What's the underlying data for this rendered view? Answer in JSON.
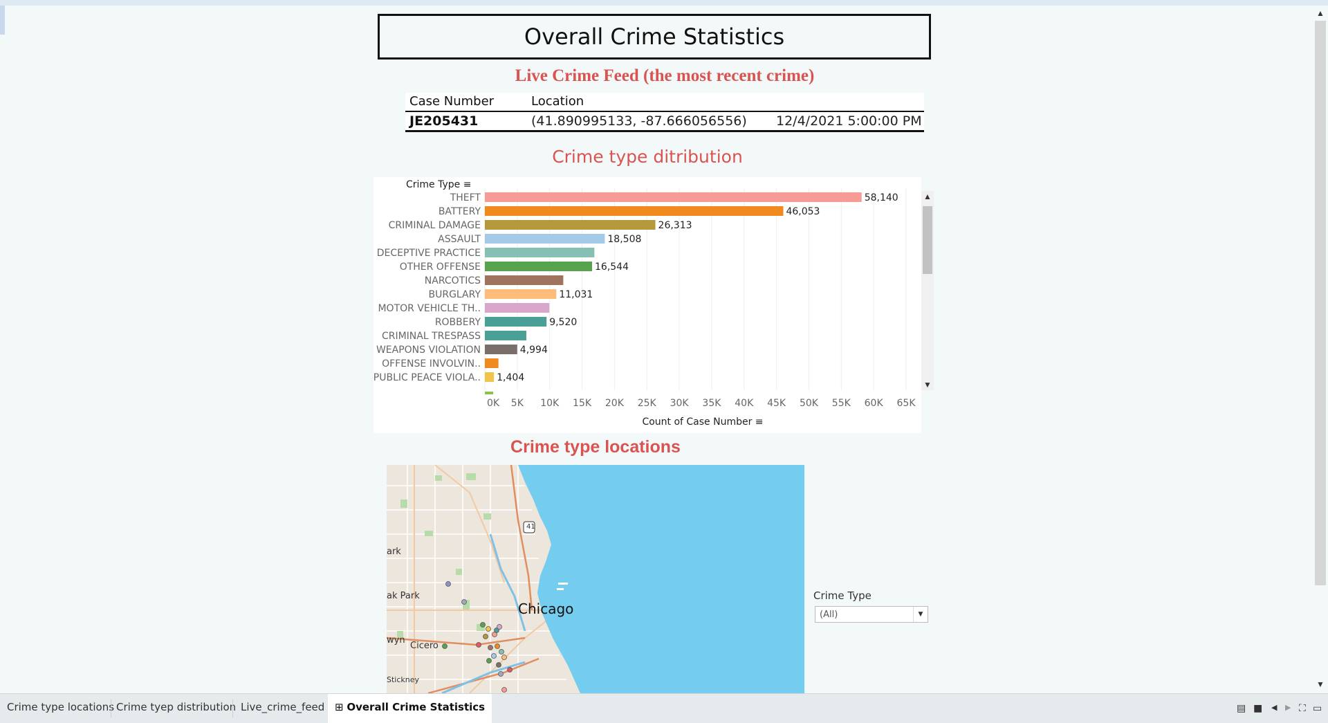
{
  "dashboard": {
    "title": "Overall Crime Statistics"
  },
  "live_feed": {
    "title": "Live Crime Feed (the most recent crime)",
    "headers": [
      "Case Number",
      "Location"
    ],
    "case_number": "JE205431",
    "location": "(41.890995133, -87.666056556)",
    "datetime": "12/4/2021 5:00:00 PM"
  },
  "distribution": {
    "title": "Crime type ditribution",
    "scroll_up_icon": "chevron-up-icon",
    "scroll_down_icon": "chevron-down-icon"
  },
  "chart_data": {
    "type": "bar",
    "orientation": "horizontal",
    "category_axis_label": "Crime Type",
    "value_axis_label": "Count of Case Number",
    "xlim": [
      0,
      65000
    ],
    "ticks": [
      "0K",
      "5K",
      "10K",
      "15K",
      "20K",
      "25K",
      "30K",
      "35K",
      "40K",
      "45K",
      "50K",
      "55K",
      "60K",
      "65K"
    ],
    "grid": true,
    "bars": [
      {
        "label": "THEFT",
        "value": 58140,
        "value_label": "58,140",
        "color": "#f79b97"
      },
      {
        "label": "BATTERY",
        "value": 46053,
        "value_label": "46,053",
        "color": "#f08a1f"
      },
      {
        "label": "CRIMINAL DAMAGE",
        "value": 26313,
        "value_label": "26,313",
        "color": "#b5983a"
      },
      {
        "label": "ASSAULT",
        "value": 18508,
        "value_label": "18,508",
        "color": "#a3cbe8"
      },
      {
        "label": "DECEPTIVE PRACTICE",
        "value": 16900,
        "value_label": "",
        "color": "#86c0b4"
      },
      {
        "label": "OTHER OFFENSE",
        "value": 16544,
        "value_label": "16,544",
        "color": "#59a24d"
      },
      {
        "label": "NARCOTICS",
        "value": 12100,
        "value_label": "",
        "color": "#a0735f"
      },
      {
        "label": "BURGLARY",
        "value": 11031,
        "value_label": "11,031",
        "color": "#ffbb79"
      },
      {
        "label": "MOTOR VEHICLE TH..",
        "value": 9950,
        "value_label": "",
        "color": "#d7a6c8"
      },
      {
        "label": "ROBBERY",
        "value": 9520,
        "value_label": "9,520",
        "color": "#4a9f96"
      },
      {
        "label": "CRIMINAL TRESPASS",
        "value": 6400,
        "value_label": "",
        "color": "#4a9f96"
      },
      {
        "label": "WEAPONS VIOLATION",
        "value": 4994,
        "value_label": "4,994",
        "color": "#7a6e6b"
      },
      {
        "label": "OFFENSE INVOLVIN..",
        "value": 2100,
        "value_label": "",
        "color": "#f08a1f"
      },
      {
        "label": "PUBLIC PEACE VIOLA..",
        "value": 1404,
        "value_label": "1,404",
        "color": "#f2c44c"
      }
    ]
  },
  "locations": {
    "title": "Crime type locations",
    "map_labels": {
      "chicago": "Chicago",
      "cicero": "Cicero",
      "oak_park": "ak Park",
      "park": "ark",
      "berwyn": "wyn",
      "stickney": "Stickney",
      "highway": "41"
    },
    "filter": {
      "label": "Crime Type",
      "value": "(All)"
    }
  },
  "tabs": [
    {
      "label": "Crime type locations"
    },
    {
      "label": "Crime tyep distribution"
    },
    {
      "label": "Live_crime_feed"
    },
    {
      "label": "Overall Crime Statistics",
      "icon": "grid-icon",
      "active": true
    }
  ],
  "bottom_controls": {
    "icons": [
      "list-view-icon",
      "single-view-icon",
      "prev-icon",
      "next-icon",
      "fullscreen-icon",
      "present-icon"
    ]
  }
}
